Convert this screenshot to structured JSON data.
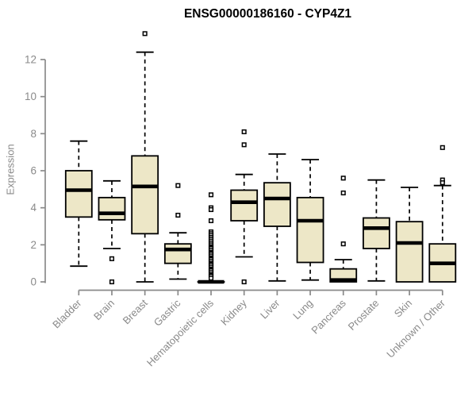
{
  "chart_data": {
    "type": "boxplot",
    "title": "ENSG00000186160 - CYP4Z1",
    "ylabel": "Expression",
    "xlabel": "",
    "ylim": [
      0,
      12
    ],
    "yticks": [
      0,
      2,
      4,
      6,
      8,
      10,
      12
    ],
    "grid": false,
    "legend": "none",
    "categories": [
      "Bladder",
      "Brain",
      "Breast",
      "Gastric",
      "Hematopoietic cells",
      "Kidney",
      "Liver",
      "Lung",
      "Pancreas",
      "Prostate",
      "Skin",
      "Unknown / Other"
    ],
    "series": [
      {
        "name": "Bladder",
        "whisker_low": 0.85,
        "q1": 3.5,
        "median": 4.95,
        "q3": 6.0,
        "whisker_high": 7.6,
        "outliers": []
      },
      {
        "name": "Brain",
        "whisker_low": 1.8,
        "q1": 3.35,
        "median": 3.7,
        "q3": 4.55,
        "whisker_high": 5.45,
        "outliers": [
          1.25,
          0.0
        ]
      },
      {
        "name": "Breast",
        "whisker_low": 0.0,
        "q1": 2.6,
        "median": 5.15,
        "q3": 6.8,
        "whisker_high": 12.4,
        "outliers": [
          13.4
        ]
      },
      {
        "name": "Gastric",
        "whisker_low": 0.15,
        "q1": 1.0,
        "median": 1.75,
        "q3": 2.05,
        "whisker_high": 2.65,
        "outliers": [
          5.2,
          3.6
        ]
      },
      {
        "name": "Hematopoietic cells",
        "whisker_low": 0.0,
        "q1": 0.0,
        "median": 0.0,
        "q3": 0.0,
        "whisker_high": 0.0,
        "outliers": [
          4.7,
          4.0,
          3.9,
          3.3,
          2.7,
          2.6,
          2.5,
          2.4,
          2.3,
          2.2,
          2.1,
          2.0,
          1.9,
          1.85,
          1.8,
          1.7,
          1.6,
          1.55,
          1.5,
          1.4,
          1.3,
          1.25,
          1.2,
          1.1,
          1.0,
          0.95,
          0.9,
          0.8,
          0.7,
          0.65,
          0.6,
          0.5,
          0.4,
          0.35,
          0.3,
          0.2
        ]
      },
      {
        "name": "Kidney",
        "whisker_low": 1.35,
        "q1": 3.3,
        "median": 4.3,
        "q3": 4.95,
        "whisker_high": 5.8,
        "outliers": [
          8.1,
          7.4,
          0.0
        ]
      },
      {
        "name": "Liver",
        "whisker_low": 0.05,
        "q1": 3.0,
        "median": 4.5,
        "q3": 5.35,
        "whisker_high": 6.9,
        "outliers": []
      },
      {
        "name": "Lung",
        "whisker_low": 0.1,
        "q1": 1.05,
        "median": 3.3,
        "q3": 4.55,
        "whisker_high": 6.6,
        "outliers": []
      },
      {
        "name": "Pancreas",
        "whisker_low": 0.0,
        "q1": 0.0,
        "median": 0.1,
        "q3": 0.7,
        "whisker_high": 1.2,
        "outliers": [
          5.6,
          4.8,
          2.05
        ]
      },
      {
        "name": "Prostate",
        "whisker_low": 0.05,
        "q1": 1.8,
        "median": 2.9,
        "q3": 3.45,
        "whisker_high": 5.5,
        "outliers": []
      },
      {
        "name": "Skin",
        "whisker_low": 0.0,
        "q1": 0.0,
        "median": 2.1,
        "q3": 3.25,
        "whisker_high": 5.1,
        "outliers": []
      },
      {
        "name": "Unknown / Other",
        "whisker_low": 0.0,
        "q1": 0.0,
        "median": 1.0,
        "q3": 2.05,
        "whisker_high": 5.2,
        "outliers": [
          7.25,
          5.5,
          5.35
        ]
      }
    ],
    "colors": {
      "box_fill": "#EDE7C7",
      "box_stroke": "#000000",
      "median": "#000000",
      "whisker": "#000000",
      "outlier_stroke": "#000000",
      "outlier_fill": "#ffffff",
      "axis": "#8a8a8a",
      "tick_label": "#8a8a8a",
      "title": "#000000",
      "background": "#ffffff"
    }
  }
}
